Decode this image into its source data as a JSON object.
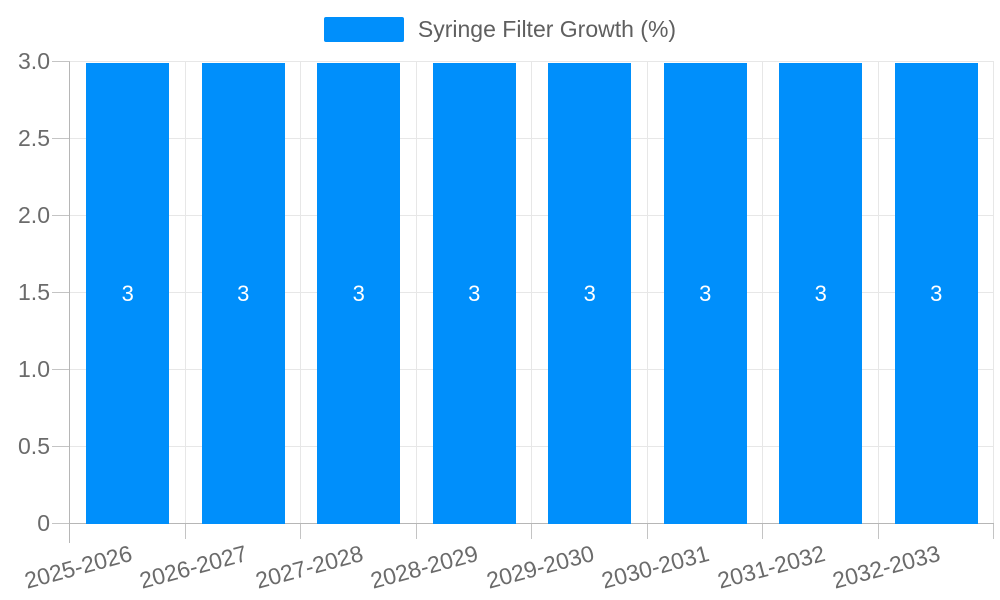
{
  "legend": {
    "position": "top",
    "entries": [
      {
        "label": "Syringe Filter Growth (%)"
      }
    ]
  },
  "chart_data": {
    "type": "bar",
    "title": "",
    "xlabel": "",
    "ylabel": "",
    "categories": [
      "2025-2026",
      "2026-2027",
      "2027-2028",
      "2028-2029",
      "2029-2030",
      "2030-2031",
      "2031-2032",
      "2032-2033"
    ],
    "series": [
      {
        "name": "Syringe Filter Growth (%)",
        "values": [
          3,
          3,
          3,
          3,
          3,
          3,
          3,
          3
        ]
      }
    ],
    "data_labels": [
      "3",
      "3",
      "3",
      "3",
      "3",
      "3",
      "3",
      "3"
    ],
    "ylim": [
      0,
      3
    ],
    "yticks": [
      0,
      0.5,
      1.0,
      1.5,
      2.0,
      2.5,
      3.0
    ],
    "ytick_labels": [
      "0",
      "0.5",
      "1.0",
      "1.5",
      "2.0",
      "2.5",
      "3.0"
    ],
    "grid": true,
    "legend_position": "top",
    "x_label_rotation_deg": -15,
    "colors": {
      "bar": "#008FFB",
      "data_label": "#ffffff",
      "gridline": "#e7e7e7",
      "axis_line": "#b6b6b6",
      "tick": "#c4c4c4",
      "axis_label": "#6b6b6b",
      "legend_text": "#5f5f5f",
      "background": "#ffffff"
    }
  }
}
